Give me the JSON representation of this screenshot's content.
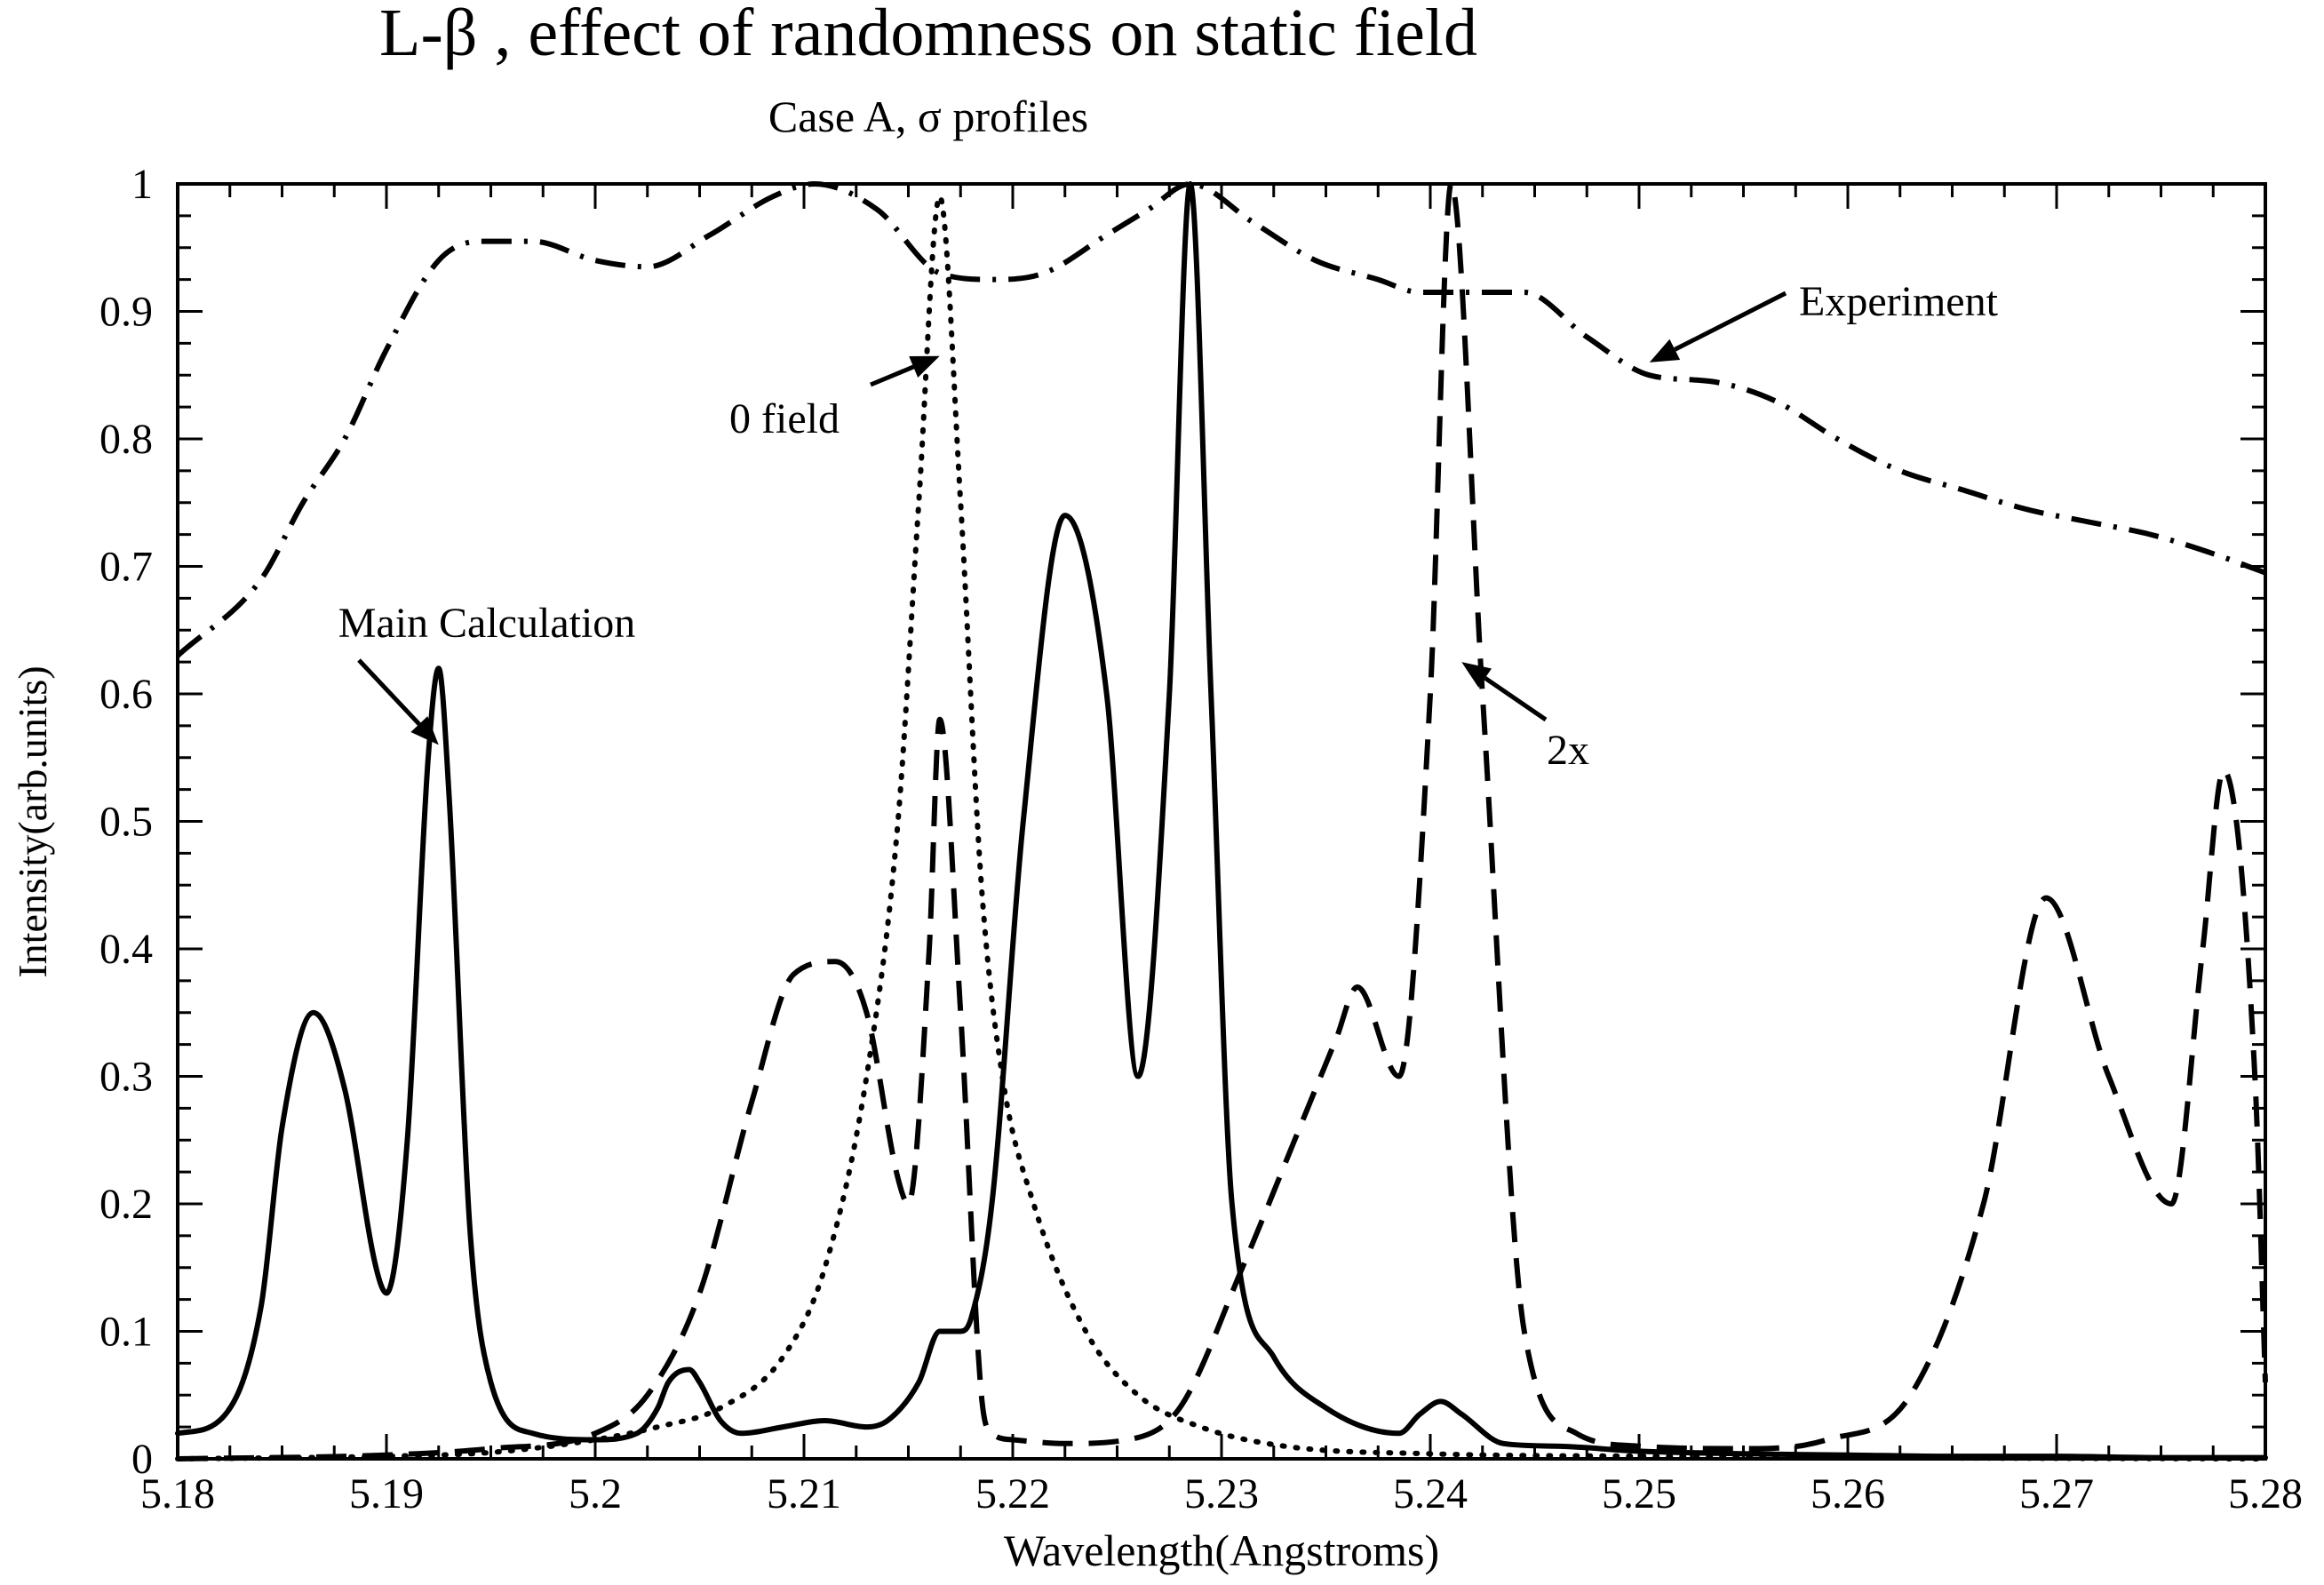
{
  "chart_data": {
    "type": "line",
    "title": "L-β  , effect of randomness on static field",
    "subtitle": "Case A, σ  profiles",
    "xlabel": "Wavelength(Angstroms)",
    "ylabel": "Intensity(arb.units)",
    "xlim": [
      5.18,
      5.28
    ],
    "ylim": [
      0,
      1
    ],
    "xticks": [
      "5.18",
      "5.19",
      "5.2",
      "5.21",
      "5.22",
      "5.23",
      "5.24",
      "5.25",
      "5.26",
      "5.27",
      "5.28"
    ],
    "yticks": [
      "0",
      "0.1",
      "0.2",
      "0.3",
      "0.4",
      "0.5",
      "0.6",
      "0.7",
      "0.8",
      "0.9",
      "1"
    ],
    "grid": false,
    "series": [
      {
        "name": "Main Calculation",
        "style": "solid",
        "x": [
          5.18,
          5.182,
          5.184,
          5.185,
          5.1865,
          5.188,
          5.1895,
          5.19,
          5.191,
          5.192,
          5.1925,
          5.193,
          5.194,
          5.195,
          5.197,
          5.2,
          5.202,
          5.203,
          5.2035,
          5.2045,
          5.205,
          5.206,
          5.207,
          5.209,
          5.211,
          5.213,
          5.214,
          5.2155,
          5.2165,
          5.2175,
          5.218,
          5.219,
          5.2205,
          5.2225,
          5.2245,
          5.226,
          5.2275,
          5.2285,
          5.2295,
          5.2305,
          5.2325,
          5.235,
          5.2385,
          5.2395,
          5.2405,
          5.2415,
          5.2435,
          5.246,
          5.25,
          5.255,
          5.26,
          5.265,
          5.27,
          5.275,
          5.28
        ],
        "y": [
          0.02,
          0.03,
          0.12,
          0.26,
          0.35,
          0.29,
          0.15,
          0.13,
          0.25,
          0.55,
          0.62,
          0.52,
          0.18,
          0.06,
          0.02,
          0.015,
          0.02,
          0.04,
          0.06,
          0.07,
          0.06,
          0.03,
          0.02,
          0.025,
          0.03,
          0.025,
          0.03,
          0.06,
          0.1,
          0.1,
          0.11,
          0.2,
          0.5,
          0.74,
          0.6,
          0.3,
          0.6,
          1.0,
          0.6,
          0.2,
          0.08,
          0.04,
          0.02,
          0.035,
          0.045,
          0.035,
          0.012,
          0.01,
          0.006,
          0.004,
          0.003,
          0.002,
          0.002,
          0.001,
          0.001
        ]
      },
      {
        "name": "0 field",
        "style": "dotted",
        "x": [
          5.18,
          5.19,
          5.195,
          5.2,
          5.203,
          5.206,
          5.209,
          5.211,
          5.213,
          5.2145,
          5.2155,
          5.2165,
          5.2175,
          5.2185,
          5.2195,
          5.221,
          5.2235,
          5.226,
          5.229,
          5.233,
          5.24,
          5.25,
          5.26,
          5.28
        ],
        "y": [
          0.0,
          0.002,
          0.005,
          0.015,
          0.025,
          0.04,
          0.08,
          0.15,
          0.3,
          0.5,
          0.75,
          0.99,
          0.75,
          0.45,
          0.3,
          0.2,
          0.1,
          0.05,
          0.025,
          0.01,
          0.004,
          0.002,
          0.001,
          0.0
        ]
      },
      {
        "name": "2x",
        "style": "dashed",
        "x": [
          5.18,
          5.19,
          5.195,
          5.2,
          5.2025,
          5.205,
          5.2075,
          5.2095,
          5.2115,
          5.213,
          5.2145,
          5.215,
          5.216,
          5.2165,
          5.2175,
          5.2185,
          5.219,
          5.22,
          5.2225,
          5.2255,
          5.228,
          5.231,
          5.2335,
          5.2355,
          5.2365,
          5.2385,
          5.24,
          5.241,
          5.2425,
          5.2445,
          5.247,
          5.25,
          5.255,
          5.259,
          5.263,
          5.2665,
          5.2695,
          5.2725,
          5.2755,
          5.277,
          5.278,
          5.2795,
          5.28
        ],
        "y": [
          0.0,
          0.003,
          0.008,
          0.02,
          0.05,
          0.13,
          0.28,
          0.38,
          0.39,
          0.35,
          0.22,
          0.2,
          0.4,
          0.58,
          0.35,
          0.05,
          0.02,
          0.015,
          0.012,
          0.015,
          0.04,
          0.15,
          0.25,
          0.33,
          0.37,
          0.3,
          0.6,
          1.0,
          0.6,
          0.1,
          0.02,
          0.01,
          0.008,
          0.015,
          0.05,
          0.2,
          0.44,
          0.3,
          0.2,
          0.4,
          0.54,
          0.3,
          0.06
        ]
      },
      {
        "name": "Experiment",
        "style": "dash-dot",
        "x": [
          5.18,
          5.184,
          5.186,
          5.188,
          5.19,
          5.1925,
          5.1945,
          5.197,
          5.2,
          5.2025,
          5.2055,
          5.2085,
          5.2105,
          5.2135,
          5.2165,
          5.219,
          5.2215,
          5.2245,
          5.2265,
          5.2285,
          5.2315,
          5.2345,
          5.2375,
          5.2395,
          5.2415,
          5.2445,
          5.2475,
          5.2505,
          5.2535,
          5.2565,
          5.2595,
          5.2625,
          5.2655,
          5.2685,
          5.2715,
          5.2745,
          5.2775,
          5.28
        ],
        "y": [
          0.63,
          0.69,
          0.75,
          0.8,
          0.87,
          0.94,
          0.955,
          0.955,
          0.94,
          0.935,
          0.96,
          0.99,
          1.0,
          0.98,
          0.93,
          0.925,
          0.93,
          0.96,
          0.98,
          1.0,
          0.97,
          0.94,
          0.925,
          0.915,
          0.915,
          0.915,
          0.88,
          0.85,
          0.845,
          0.83,
          0.8,
          0.775,
          0.76,
          0.745,
          0.735,
          0.725,
          0.71,
          0.695
        ]
      }
    ],
    "annotations": [
      {
        "text": "Main Calculation",
        "arrow_to": [
          5.1925,
          0.56
        ]
      },
      {
        "text": "0 field",
        "arrow_to": [
          5.2165,
          0.865
        ]
      },
      {
        "text": "Experiment",
        "arrow_to": [
          5.2505,
          0.86
        ]
      },
      {
        "text": "2x",
        "arrow_to": [
          5.2415,
          0.625
        ]
      }
    ]
  }
}
